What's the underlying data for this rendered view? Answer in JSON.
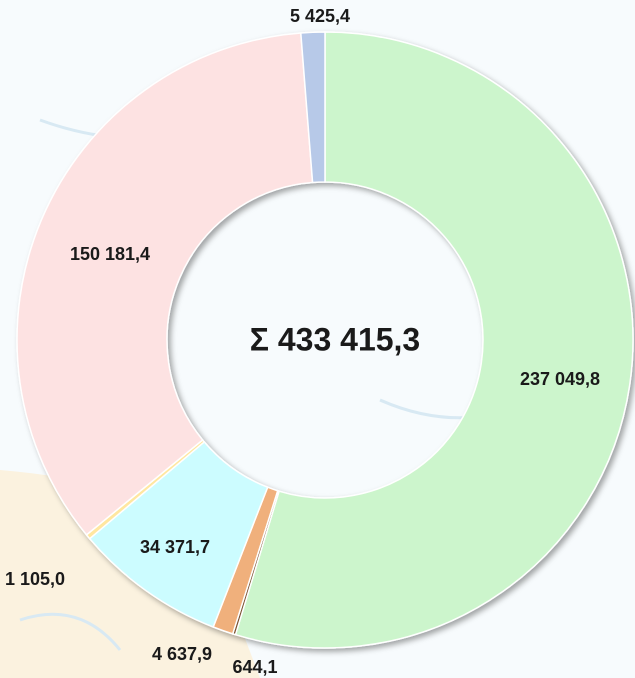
{
  "chart_data": {
    "type": "donut",
    "categories": [
      null,
      null,
      null,
      null,
      null,
      null,
      null
    ],
    "values": [
      237049.8,
      644.1,
      4637.9,
      34371.7,
      1105.0,
      150181.4,
      5425.4
    ],
    "value_labels": [
      "237 049,8",
      "644,1",
      "4 637,9",
      "34 371,7",
      "1 105,0",
      "150 181,4",
      "5 425,4"
    ],
    "colors": [
      "#ccf5cc",
      "#7a5230",
      "#f0b07c",
      "#ccfcff",
      "#ffe7a0",
      "#fde2e2",
      "#b7c9e8"
    ],
    "center_label": "Σ 433 415,3"
  }
}
